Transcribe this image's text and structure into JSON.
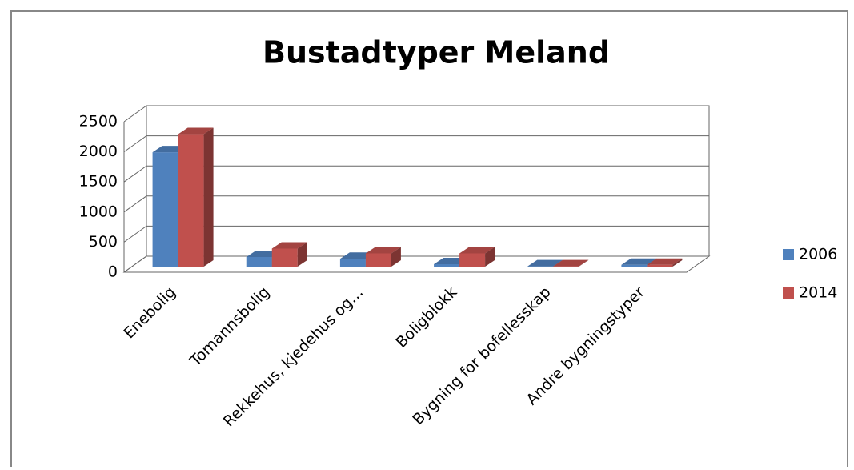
{
  "chart_data": {
    "type": "bar3d",
    "title": "Bustadtyper Meland",
    "categories": [
      "Enebolig",
      "Tomannsbolig",
      "Rekkehus, kjedehus og…",
      "Boligblokk",
      "Bygning for bofellesskap",
      "Andre bygningstyper"
    ],
    "series": [
      {
        "name": "2006",
        "color": "#4f81bd",
        "values": [
          1900,
          160,
          130,
          40,
          5,
          30
        ]
      },
      {
        "name": "2014",
        "color": "#c0504d",
        "values": [
          2200,
          300,
          220,
          220,
          5,
          30
        ]
      }
    ],
    "ylim": [
      0,
      2500
    ],
    "yticks": [
      0,
      500,
      1000,
      1500,
      2000,
      2500
    ],
    "grid": true,
    "legend": "right"
  }
}
